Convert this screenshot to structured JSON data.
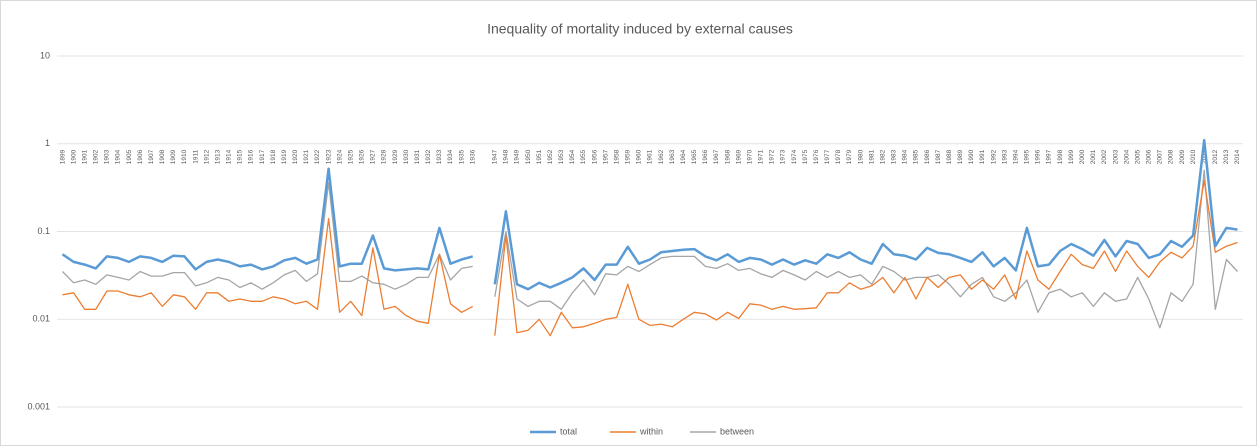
{
  "chart_data": {
    "type": "line",
    "title": "Inequality of mortality induced by external causes",
    "categories": [
      "1899",
      "1900",
      "1901",
      "1902",
      "1903",
      "1904",
      "1905",
      "1906",
      "1907",
      "1908",
      "1909",
      "1910",
      "1911",
      "1912",
      "1913",
      "1914",
      "1915",
      "1916",
      "1917",
      "1918",
      "1919",
      "1920",
      "1921",
      "1922",
      "1923",
      "1924",
      "1925",
      "1926",
      "1927",
      "1928",
      "1929",
      "1930",
      "1931",
      "1932",
      "1933",
      "1934",
      "1935",
      "1936",
      null,
      "1947",
      "1948",
      "1949",
      "1950",
      "1951",
      "1952",
      "1953",
      "1954",
      "1955",
      "1956",
      "1957",
      "1958",
      "1959",
      "1960",
      "1961",
      "1962",
      "1963",
      "1964",
      "1965",
      "1966",
      "1967",
      "1968",
      "1969",
      "1970",
      "1971",
      "1972",
      "1973",
      "1974",
      "1975",
      "1976",
      "1977",
      "1978",
      "1979",
      "1980",
      "1981",
      "1982",
      "1983",
      "1984",
      "1985",
      "1986",
      "1987",
      "1988",
      "1989",
      "1990",
      "1991",
      "1992",
      "1993",
      "1994",
      "1995",
      "1996",
      "1997",
      "1998",
      "1999",
      "2000",
      "2001",
      "2002",
      "2003",
      "2004",
      "2005",
      "2006",
      "2007",
      "2008",
      "2009",
      "2010",
      "2011",
      "2012",
      "2013",
      "2014"
    ],
    "series": [
      {
        "name": "total",
        "color": "#5b9bd5",
        "values": [
          0.055,
          0.045,
          0.042,
          0.038,
          0.052,
          0.05,
          0.045,
          0.052,
          0.05,
          0.045,
          0.053,
          0.052,
          0.037,
          0.045,
          0.048,
          0.045,
          0.04,
          0.042,
          0.037,
          0.04,
          0.047,
          0.05,
          0.043,
          0.048,
          0.52,
          0.04,
          0.043,
          0.043,
          0.09,
          0.038,
          0.036,
          0.037,
          0.038,
          0.037,
          0.11,
          0.043,
          0.048,
          0.052,
          null,
          0.025,
          0.17,
          0.025,
          0.022,
          0.026,
          0.023,
          0.026,
          0.03,
          0.038,
          0.028,
          0.042,
          0.042,
          0.067,
          0.043,
          0.048,
          0.058,
          0.06,
          0.062,
          0.063,
          0.052,
          0.047,
          0.055,
          0.045,
          0.05,
          0.048,
          0.042,
          0.048,
          0.042,
          0.047,
          0.043,
          0.055,
          0.05,
          0.058,
          0.048,
          0.043,
          0.072,
          0.055,
          0.053,
          0.048,
          0.065,
          0.057,
          0.055,
          0.05,
          0.045,
          0.058,
          0.04,
          0.05,
          0.036,
          0.11,
          0.04,
          0.042,
          0.06,
          0.072,
          0.063,
          0.053,
          0.08,
          0.052,
          0.078,
          0.072,
          0.05,
          0.055,
          0.078,
          0.067,
          0.09,
          1.1,
          0.068,
          0.11,
          0.105
        ]
      },
      {
        "name": "within",
        "color": "#ed7d31",
        "values": [
          0.019,
          0.02,
          0.013,
          0.013,
          0.021,
          0.021,
          0.019,
          0.018,
          0.02,
          0.014,
          0.019,
          0.018,
          0.013,
          0.02,
          0.02,
          0.016,
          0.017,
          0.016,
          0.016,
          0.018,
          0.017,
          0.015,
          0.016,
          0.013,
          0.14,
          0.012,
          0.016,
          0.011,
          0.065,
          0.013,
          0.014,
          0.011,
          0.0095,
          0.009,
          0.055,
          0.015,
          0.012,
          0.014,
          null,
          0.0065,
          0.09,
          0.007,
          0.0075,
          0.01,
          0.0065,
          0.012,
          0.008,
          0.0082,
          0.009,
          0.01,
          0.0105,
          0.025,
          0.01,
          0.0085,
          0.0088,
          0.0082,
          0.01,
          0.012,
          0.0115,
          0.0098,
          0.012,
          0.0102,
          0.015,
          0.0145,
          0.013,
          0.014,
          0.013,
          0.0132,
          0.0135,
          0.02,
          0.02,
          0.026,
          0.022,
          0.024,
          0.03,
          0.02,
          0.03,
          0.017,
          0.03,
          0.023,
          0.03,
          0.032,
          0.022,
          0.028,
          0.022,
          0.032,
          0.017,
          0.06,
          0.028,
          0.022,
          0.035,
          0.055,
          0.042,
          0.038,
          0.06,
          0.035,
          0.06,
          0.04,
          0.03,
          0.045,
          0.058,
          0.05,
          0.068,
          0.38,
          0.058,
          0.068,
          0.075
        ]
      },
      {
        "name": "between",
        "color": "#a5a5a5",
        "values": [
          0.035,
          0.026,
          0.028,
          0.025,
          0.032,
          0.03,
          0.028,
          0.035,
          0.031,
          0.031,
          0.034,
          0.034,
          0.024,
          0.026,
          0.03,
          0.028,
          0.023,
          0.026,
          0.022,
          0.026,
          0.032,
          0.036,
          0.027,
          0.033,
          0.36,
          0.027,
          0.027,
          0.031,
          0.026,
          0.025,
          0.022,
          0.025,
          0.03,
          0.03,
          0.055,
          0.028,
          0.038,
          0.04,
          null,
          0.018,
          0.1,
          0.017,
          0.014,
          0.016,
          0.016,
          0.013,
          0.02,
          0.028,
          0.019,
          0.033,
          0.032,
          0.04,
          0.035,
          0.042,
          0.05,
          0.052,
          0.052,
          0.052,
          0.04,
          0.038,
          0.043,
          0.036,
          0.038,
          0.033,
          0.03,
          0.036,
          0.032,
          0.028,
          0.035,
          0.03,
          0.035,
          0.03,
          0.032,
          0.025,
          0.04,
          0.035,
          0.028,
          0.03,
          0.03,
          0.032,
          0.025,
          0.018,
          0.025,
          0.03,
          0.018,
          0.016,
          0.02,
          0.028,
          0.012,
          0.02,
          0.022,
          0.018,
          0.02,
          0.014,
          0.02,
          0.016,
          0.017,
          0.03,
          0.017,
          0.008,
          0.02,
          0.016,
          0.025,
          0.5,
          0.013,
          0.048,
          0.035
        ]
      }
    ],
    "ylim": [
      0.001,
      10
    ],
    "yticks": [
      0.001,
      0.01,
      0.1,
      1,
      10
    ],
    "log_y": true,
    "grid": true,
    "legend": "bottom"
  }
}
